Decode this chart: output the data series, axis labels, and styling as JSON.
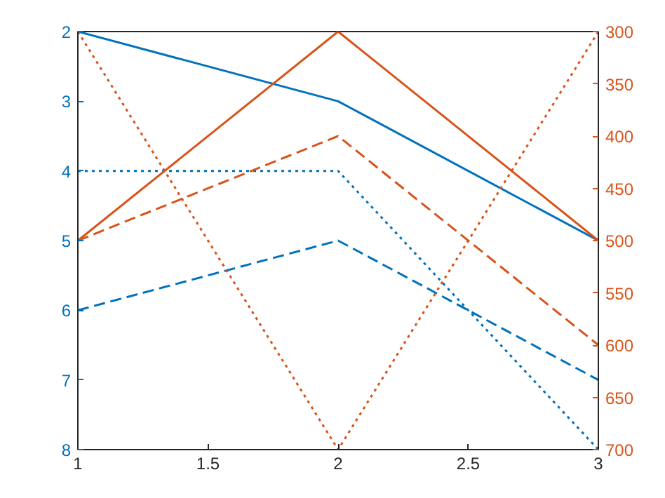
{
  "chart_data": {
    "type": "line",
    "x": [
      1,
      2,
      3
    ],
    "xlim": [
      1,
      3
    ],
    "xticks": [
      1,
      1.5,
      2,
      2.5,
      3
    ],
    "ylim": [
      8,
      2
    ],
    "yticks": [
      2,
      3,
      4,
      5,
      6,
      7,
      8
    ],
    "y2lim": [
      700,
      300
    ],
    "y2ticks": [
      300,
      350,
      400,
      450,
      500,
      550,
      600,
      650,
      700
    ],
    "grid": false,
    "marker": "none",
    "series": [
      {
        "color": "#0072bd",
        "values": [
          2,
          3,
          5
        ],
        "line_style": "solid"
      },
      {
        "color": "#0072bd",
        "values": [
          6,
          5,
          7
        ],
        "line_style": "dashed"
      },
      {
        "color": "#0072bd",
        "values": [
          4,
          4,
          8
        ],
        "line_style": "dotted"
      },
      {
        "color": "#d95319",
        "values": [
          500,
          300,
          500
        ],
        "line_style": "solid",
        "axis": "y2"
      },
      {
        "color": "#d95319",
        "values": [
          500,
          400,
          600
        ],
        "line_style": "dashed",
        "axis": "y2"
      },
      {
        "color": "#d95319",
        "values": [
          300,
          700,
          300
        ],
        "line_style": "dotted",
        "axis": "y2"
      }
    ]
  }
}
